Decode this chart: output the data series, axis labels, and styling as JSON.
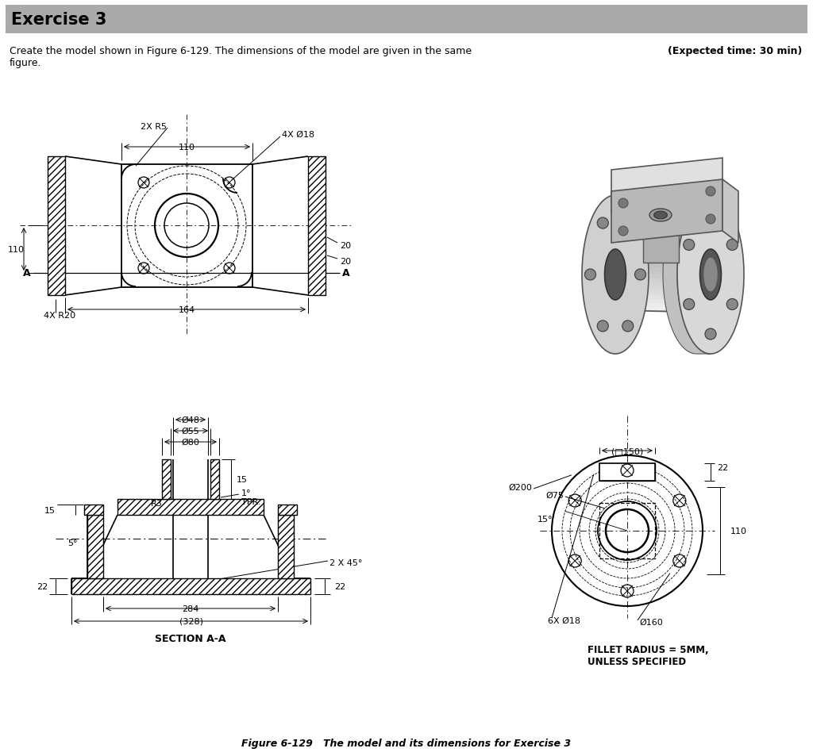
{
  "title_box": "Exercise 3",
  "title_box_bg": "#aaaaaa",
  "bg_color": "#ffffff",
  "description_line1": "Create the model shown in Figure 6-129. The dimensions of the model are given in the same",
  "description_line2": "figure.",
  "expected_time": "(Expected time: 30 min)",
  "figure_caption": "Figure 6-129   The model and its dimensions for Exercise 3",
  "fillet_note": "FILLET RADIUS = 5MM,\nUNLESS SPECIFIED"
}
